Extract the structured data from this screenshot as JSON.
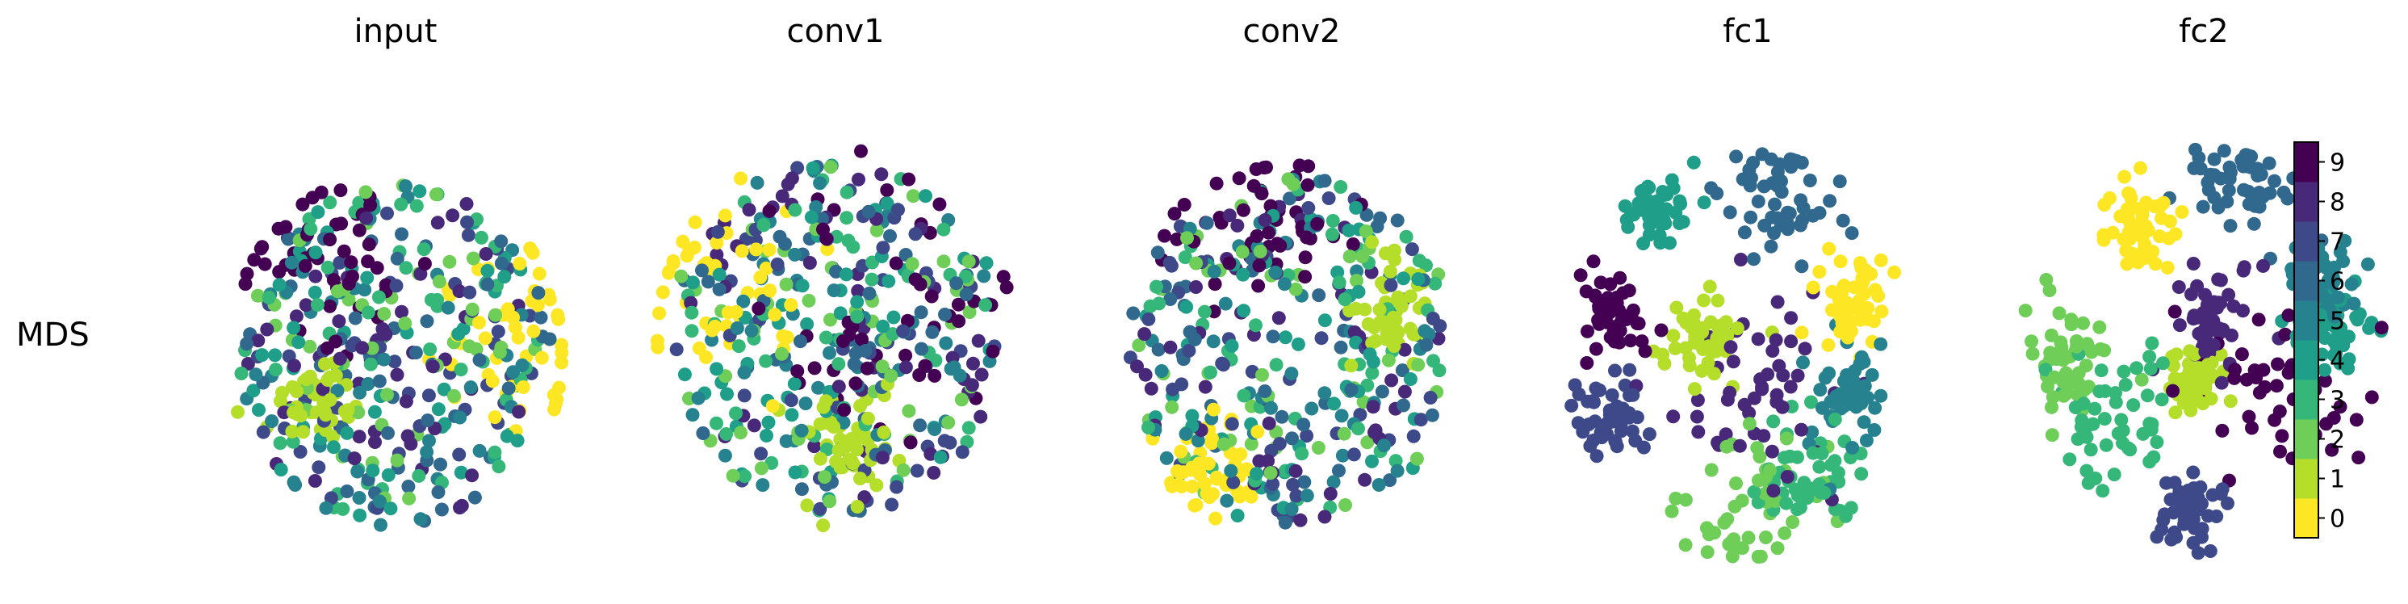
{
  "figure": {
    "row_label": "MDS"
  },
  "colors": {
    "0": "#fde725",
    "1": "#b5de2b",
    "2": "#6ece58",
    "3": "#35b779",
    "4": "#1f9e89",
    "5": "#26828e",
    "6": "#31688e",
    "7": "#3e4989",
    "8": "#482878",
    "9": "#440154"
  },
  "colorbar": {
    "ticks": [
      "0",
      "1",
      "2",
      "3",
      "4",
      "5",
      "6",
      "7",
      "8",
      "9"
    ]
  },
  "chart_data": [
    {
      "type": "scatter",
      "title": "input",
      "xlabel": "",
      "ylabel": "",
      "axes": "off",
      "points_per_class_approx": 50,
      "cluster_structure": {
        "1": "tight cluster lower-left",
        "9": "upper-left",
        "0": "scattered on right edge",
        "others": "mixed throughout"
      }
    },
    {
      "type": "scatter",
      "title": "conv1",
      "xlabel": "",
      "ylabel": "",
      "axes": "off",
      "points_per_class_approx": 50,
      "cluster_structure": {
        "1": "cluster lower-center",
        "0": "upper-left and left edge",
        "9": "right side",
        "others": "mixed throughout"
      }
    },
    {
      "type": "scatter",
      "title": "conv2",
      "xlabel": "",
      "ylabel": "",
      "axes": "off",
      "points_per_class_approx": 50,
      "cluster_structure": {
        "9": "top band",
        "1": "cluster right",
        "0": "bottom-left",
        "others": "mixed throughout"
      }
    },
    {
      "type": "scatter",
      "title": "fc1",
      "xlabel": "",
      "ylabel": "",
      "axes": "off",
      "points_per_class_approx": 50,
      "cluster_structure": {
        "4": "upper-left",
        "9": "left",
        "7": "lower-left",
        "1": "center-left",
        "0": "right",
        "6": "top",
        "2": "bottom",
        "3": "bottom-right",
        "5": "right-center",
        "8": "center"
      }
    },
    {
      "type": "scatter",
      "title": "fc2",
      "xlabel": "",
      "ylabel": "",
      "axes": "off",
      "points_per_class_approx": 50,
      "colorbar": true,
      "cluster_structure": {
        "0": "upper-left",
        "6": "top-right",
        "8": "center",
        "9": "right",
        "2": "left",
        "1": "center",
        "3": "lower-left",
        "4": "right",
        "5": "right",
        "7": "bottom-center"
      }
    }
  ]
}
